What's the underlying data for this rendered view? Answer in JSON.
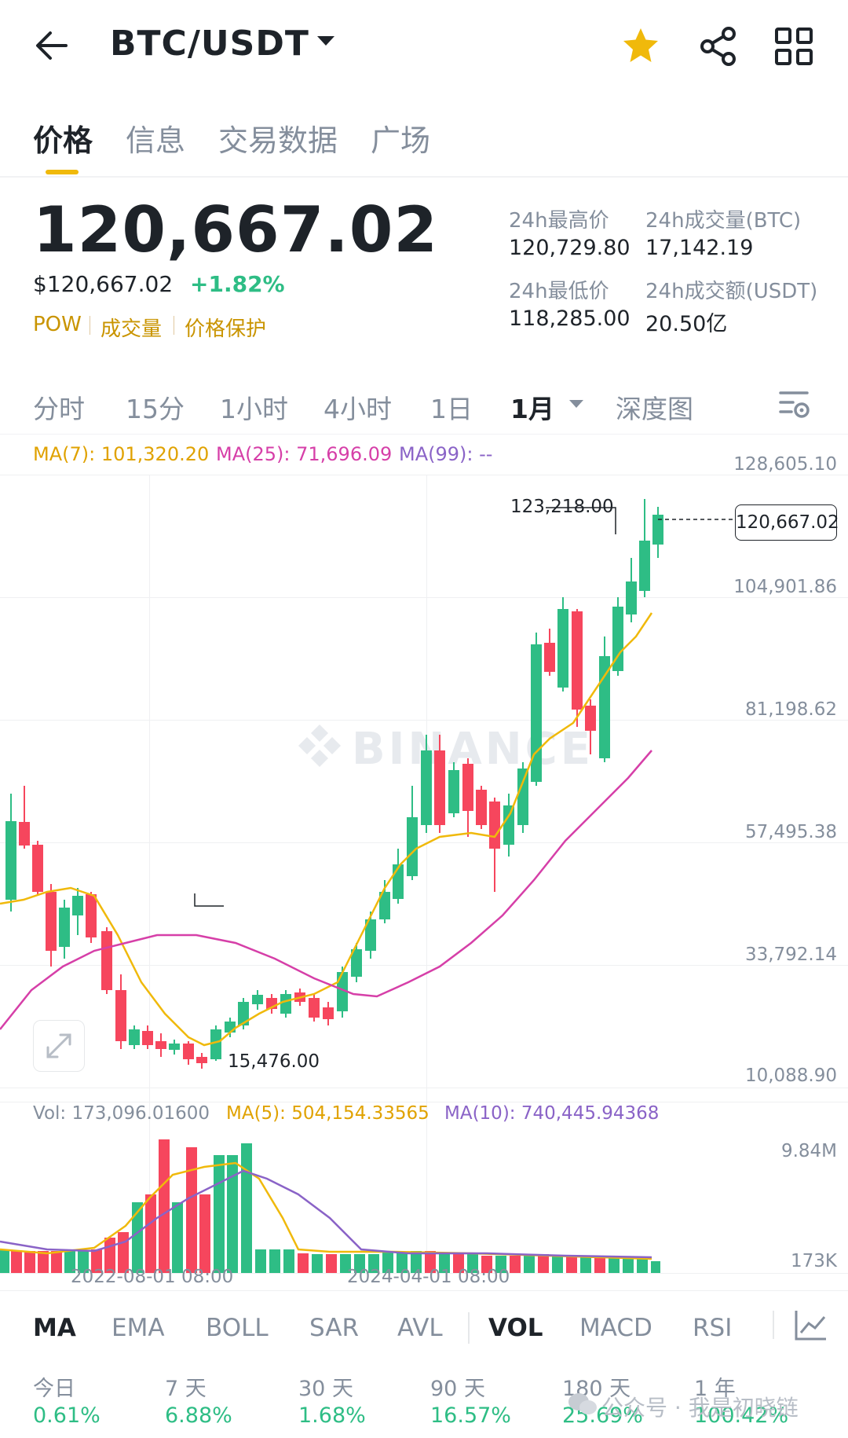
{
  "header": {
    "title": "BTC/USDT",
    "icons": [
      "back-arrow-icon",
      "chevron-down-icon",
      "star-icon",
      "share-icon",
      "grid-icon"
    ],
    "star_color": "#f0b90b"
  },
  "tabs": [
    {
      "label": "价格",
      "active": true
    },
    {
      "label": "信息"
    },
    {
      "label": "交易数据"
    },
    {
      "label": "广场"
    }
  ],
  "ticker": {
    "last_price": "120,667.02",
    "usd_value": "$120,667.02",
    "change": "+1.82%",
    "tags": [
      "POW",
      "成交量",
      "价格保护"
    ],
    "stats": [
      {
        "label": "24h最高价",
        "value": "120,729.80"
      },
      {
        "label": "24h成交量(BTC)",
        "value": "17,142.19"
      },
      {
        "label": "24h最低价",
        "value": "118,285.00"
      },
      {
        "label": "24h成交额(USDT)",
        "value": "20.50亿"
      }
    ]
  },
  "timeframes": [
    "分时",
    "15分",
    "1小时",
    "4小时",
    "1日",
    "1月",
    "深度图"
  ],
  "active_timeframe": "1月",
  "ma_legend": {
    "ma7": "MA(7): 101,320.20",
    "ma25": "MA(25): 71,696.09",
    "ma99": "MA(99): --"
  },
  "price_axis": [
    "128,605.10",
    "104,901.86",
    "81,198.62",
    "57,495.38",
    "33,792.14",
    "10,088.90"
  ],
  "markers": {
    "high": "123,218.00",
    "low": "15,476.00",
    "current": "120,667.02"
  },
  "watermark": "BINANCE",
  "vol_legend": {
    "vol": "Vol: 173,096.01600",
    "ma5": "MA(5): 504,154.33565",
    "ma10": "MA(10): 740,445.94368"
  },
  "vol_axis": [
    "9.84M",
    "173K"
  ],
  "time_axis": [
    "2022-08-01 08:00",
    "2024-04-01 08:00"
  ],
  "indicators": [
    "MA",
    "EMA",
    "BOLL",
    "SAR",
    "AVL",
    "VOL",
    "MACD",
    "RSI"
  ],
  "periods": [
    {
      "label": "今日",
      "value": "0.61%"
    },
    {
      "label": "7 天",
      "value": "6.88%"
    },
    {
      "label": "30 天",
      "value": "1.68%"
    },
    {
      "label": "90 天",
      "value": "16.57%"
    },
    {
      "label": "180 天",
      "value": "25.69%"
    },
    {
      "label": "1 年",
      "value": "100.42%"
    }
  ],
  "wechat_watermark": "公众号 · 我是初晓链",
  "colors": {
    "up": "#2ebd85",
    "down": "#f6465d",
    "accent": "#f0b90b",
    "ma7": "#f0b90b",
    "ma25": "#d63fa8",
    "ma99": "#8a63c7"
  }
}
